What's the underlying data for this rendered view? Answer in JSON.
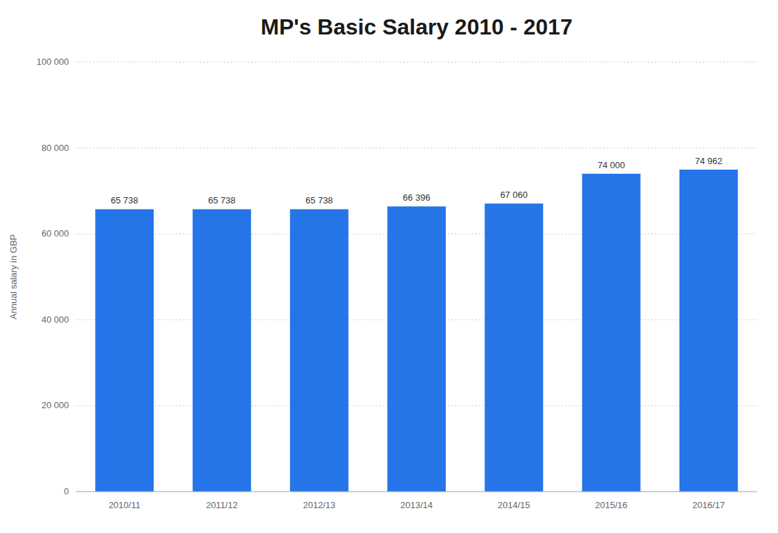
{
  "chart_data": {
    "type": "bar",
    "title": "MP's Basic Salary 2010 - 2017",
    "ylabel": "Annual salary in GBP",
    "categories": [
      "2010/11",
      "2011/12",
      "2012/13",
      "2013/14",
      "2014/15",
      "2015/16",
      "2016/17"
    ],
    "values": [
      65738,
      65738,
      65738,
      66396,
      67060,
      74000,
      74962
    ],
    "value_labels": [
      "65 738",
      "65 738",
      "65 738",
      "66 396",
      "67 060",
      "74 000",
      "74 962"
    ],
    "color": "#2575E8",
    "ylim": [
      0,
      100000
    ],
    "yticks": [
      0,
      {
        "value": 20000,
        "label": "20 000"
      },
      {
        "value": 40000,
        "label": "40 000"
      },
      {
        "value": 60000,
        "label": "60 000"
      },
      {
        "value": 80000,
        "label": "80 000"
      },
      {
        "value": 100000,
        "label": "100 000"
      }
    ],
    "grid": true
  }
}
